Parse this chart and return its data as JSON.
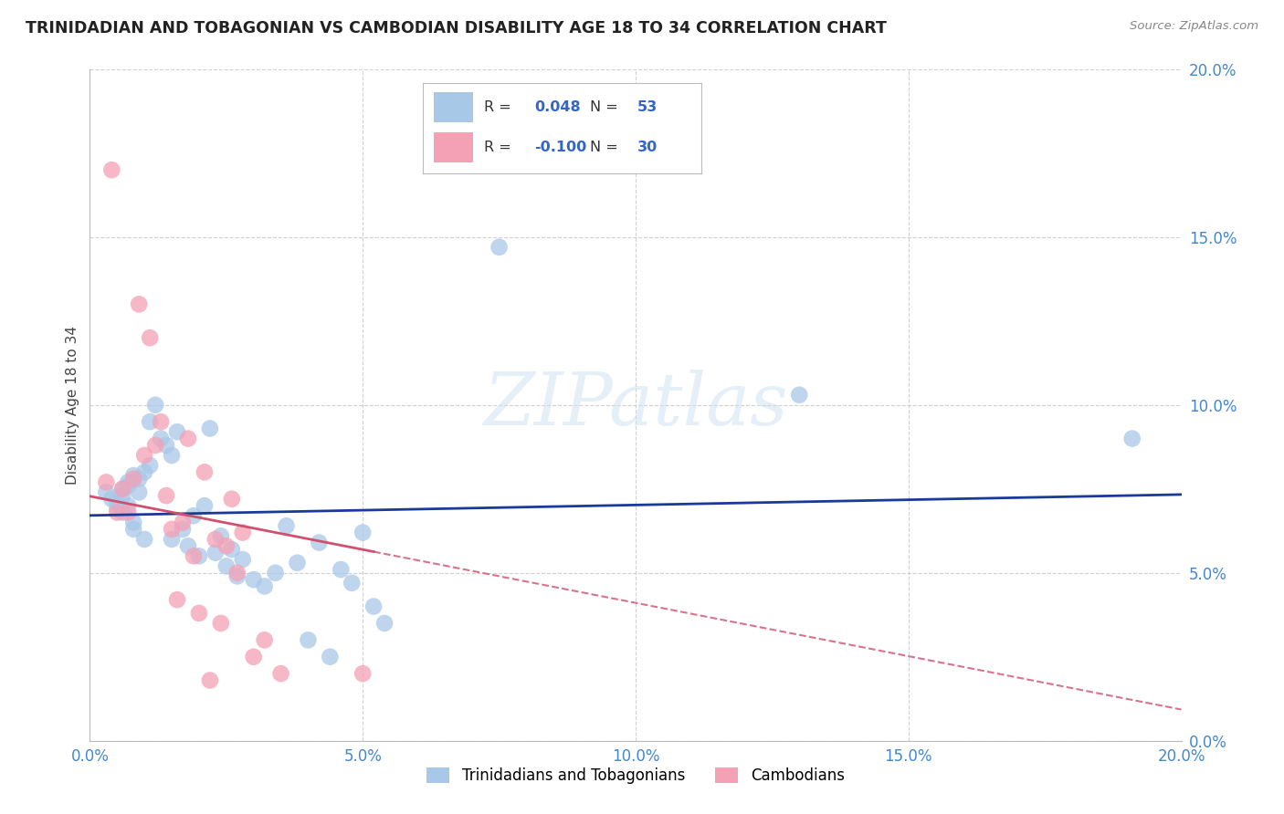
{
  "title": "TRINIDADIAN AND TOBAGONIAN VS CAMBODIAN DISABILITY AGE 18 TO 34 CORRELATION CHART",
  "source": "Source: ZipAtlas.com",
  "ylabel": "Disability Age 18 to 34",
  "xlim": [
    0.0,
    0.2
  ],
  "ylim": [
    0.0,
    0.2
  ],
  "xticks": [
    0.0,
    0.05,
    0.1,
    0.15,
    0.2
  ],
  "yticks": [
    0.0,
    0.05,
    0.1,
    0.15,
    0.2
  ],
  "blue_R": 0.048,
  "blue_N": 53,
  "pink_R": -0.1,
  "pink_N": 30,
  "blue_color": "#a8c8e8",
  "pink_color": "#f4a0b5",
  "blue_line_color": "#1a3a9a",
  "pink_line_color": "#d05070",
  "grid_color": "#cccccc",
  "bg_color": "#ffffff",
  "tick_color": "#4488cc",
  "blue_x": [
    0.003,
    0.004,
    0.005,
    0.005,
    0.006,
    0.006,
    0.006,
    0.007,
    0.007,
    0.007,
    0.008,
    0.008,
    0.008,
    0.009,
    0.009,
    0.01,
    0.01,
    0.011,
    0.011,
    0.012,
    0.013,
    0.014,
    0.015,
    0.015,
    0.016,
    0.017,
    0.018,
    0.019,
    0.02,
    0.021,
    0.022,
    0.023,
    0.024,
    0.025,
    0.026,
    0.027,
    0.028,
    0.03,
    0.032,
    0.034,
    0.036,
    0.038,
    0.04,
    0.042,
    0.044,
    0.046,
    0.048,
    0.05,
    0.052,
    0.054,
    0.075,
    0.13,
    0.191
  ],
  "blue_y": [
    0.074,
    0.072,
    0.071,
    0.069,
    0.075,
    0.073,
    0.068,
    0.077,
    0.076,
    0.07,
    0.079,
    0.065,
    0.063,
    0.078,
    0.074,
    0.08,
    0.06,
    0.082,
    0.095,
    0.1,
    0.09,
    0.088,
    0.085,
    0.06,
    0.092,
    0.063,
    0.058,
    0.067,
    0.055,
    0.07,
    0.093,
    0.056,
    0.061,
    0.052,
    0.057,
    0.049,
    0.054,
    0.048,
    0.046,
    0.05,
    0.064,
    0.053,
    0.03,
    0.059,
    0.025,
    0.051,
    0.047,
    0.062,
    0.04,
    0.035,
    0.147,
    0.103,
    0.09
  ],
  "pink_x": [
    0.003,
    0.004,
    0.005,
    0.006,
    0.007,
    0.008,
    0.009,
    0.01,
    0.011,
    0.012,
    0.013,
    0.014,
    0.015,
    0.016,
    0.017,
    0.018,
    0.019,
    0.02,
    0.021,
    0.022,
    0.023,
    0.024,
    0.025,
    0.026,
    0.027,
    0.028,
    0.03,
    0.032,
    0.035,
    0.05
  ],
  "pink_y": [
    0.077,
    0.17,
    0.068,
    0.075,
    0.068,
    0.078,
    0.13,
    0.085,
    0.12,
    0.088,
    0.095,
    0.073,
    0.063,
    0.042,
    0.065,
    0.09,
    0.055,
    0.038,
    0.08,
    0.018,
    0.06,
    0.035,
    0.058,
    0.072,
    0.05,
    0.062,
    0.025,
    0.03,
    0.02,
    0.02
  ]
}
